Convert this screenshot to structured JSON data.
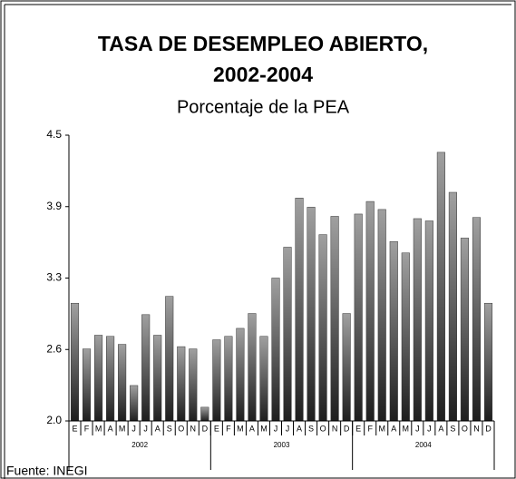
{
  "chart_data": {
    "type": "bar",
    "title": [
      "TASA DE DESEMPLEO ABIERTO,",
      "2002-2004"
    ],
    "subtitle": "Porcentaje de la PEA",
    "source": "Fuente: INEGI",
    "years": [
      "2002",
      "2003",
      "2004"
    ],
    "categories": [
      "E",
      "F",
      "M",
      "A",
      "M",
      "J",
      "J",
      "A",
      "S",
      "O",
      "N",
      "D",
      "E",
      "F",
      "M",
      "A",
      "M",
      "J",
      "J",
      "A",
      "S",
      "O",
      "N",
      "D",
      "E",
      "F",
      "M",
      "A",
      "M",
      "J",
      "J",
      "A",
      "S",
      "O",
      "N",
      "D"
    ],
    "values": [
      3.03,
      2.63,
      2.75,
      2.74,
      2.67,
      2.31,
      2.93,
      2.75,
      3.09,
      2.65,
      2.63,
      2.12,
      2.71,
      2.74,
      2.81,
      2.94,
      2.74,
      3.25,
      3.52,
      3.95,
      3.87,
      3.63,
      3.79,
      2.94,
      3.81,
      3.92,
      3.85,
      3.57,
      3.47,
      3.77,
      3.75,
      4.35,
      4.0,
      3.6,
      3.78,
      3.03
    ],
    "color": "#a0a0a0",
    "ylim": [
      2.0,
      4.5
    ],
    "yticks": [
      {
        "value": 2.0,
        "label": "2.0"
      },
      {
        "value": 2.625,
        "label": "2.6"
      },
      {
        "value": 3.25,
        "label": "3.3"
      },
      {
        "value": 3.875,
        "label": "3.9"
      },
      {
        "value": 4.5,
        "label": "4.5"
      }
    ],
    "grid": false
  }
}
